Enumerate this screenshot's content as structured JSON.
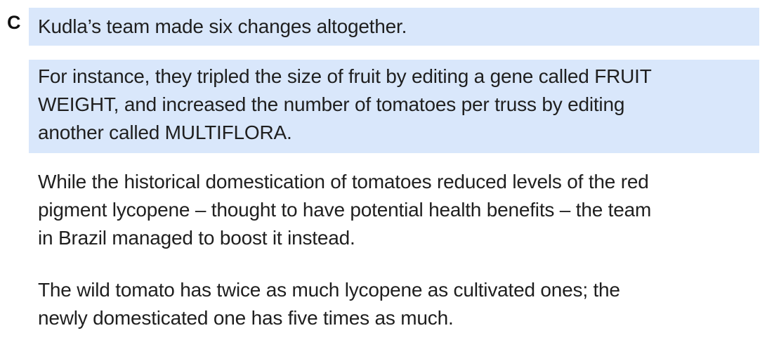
{
  "section": {
    "letter": "C"
  },
  "paragraphs": [
    {
      "highlighted": true,
      "lines": [
        "Kudla’s team made six changes altogether."
      ]
    },
    {
      "highlighted": true,
      "lines": [
        "For instance, they tripled the size of fruit by editing a gene called FRUIT",
        "WEIGHT, and increased the number of tomatoes per truss by editing",
        "another called MULTIFLORA."
      ]
    },
    {
      "highlighted": false,
      "lines": [
        "While the historical domestication of tomatoes reduced levels of the red",
        "pigment lycopene – thought to have potential health benefits – the team",
        "in Brazil managed to boost it instead."
      ]
    },
    {
      "highlighted": false,
      "lines": [
        "The wild tomato has twice as much lycopene as cultivated ones; the",
        "newly domesticated one has five times as much."
      ]
    }
  ],
  "colors": {
    "highlight": "#d9e7fb",
    "text": "#1f1f1f"
  }
}
